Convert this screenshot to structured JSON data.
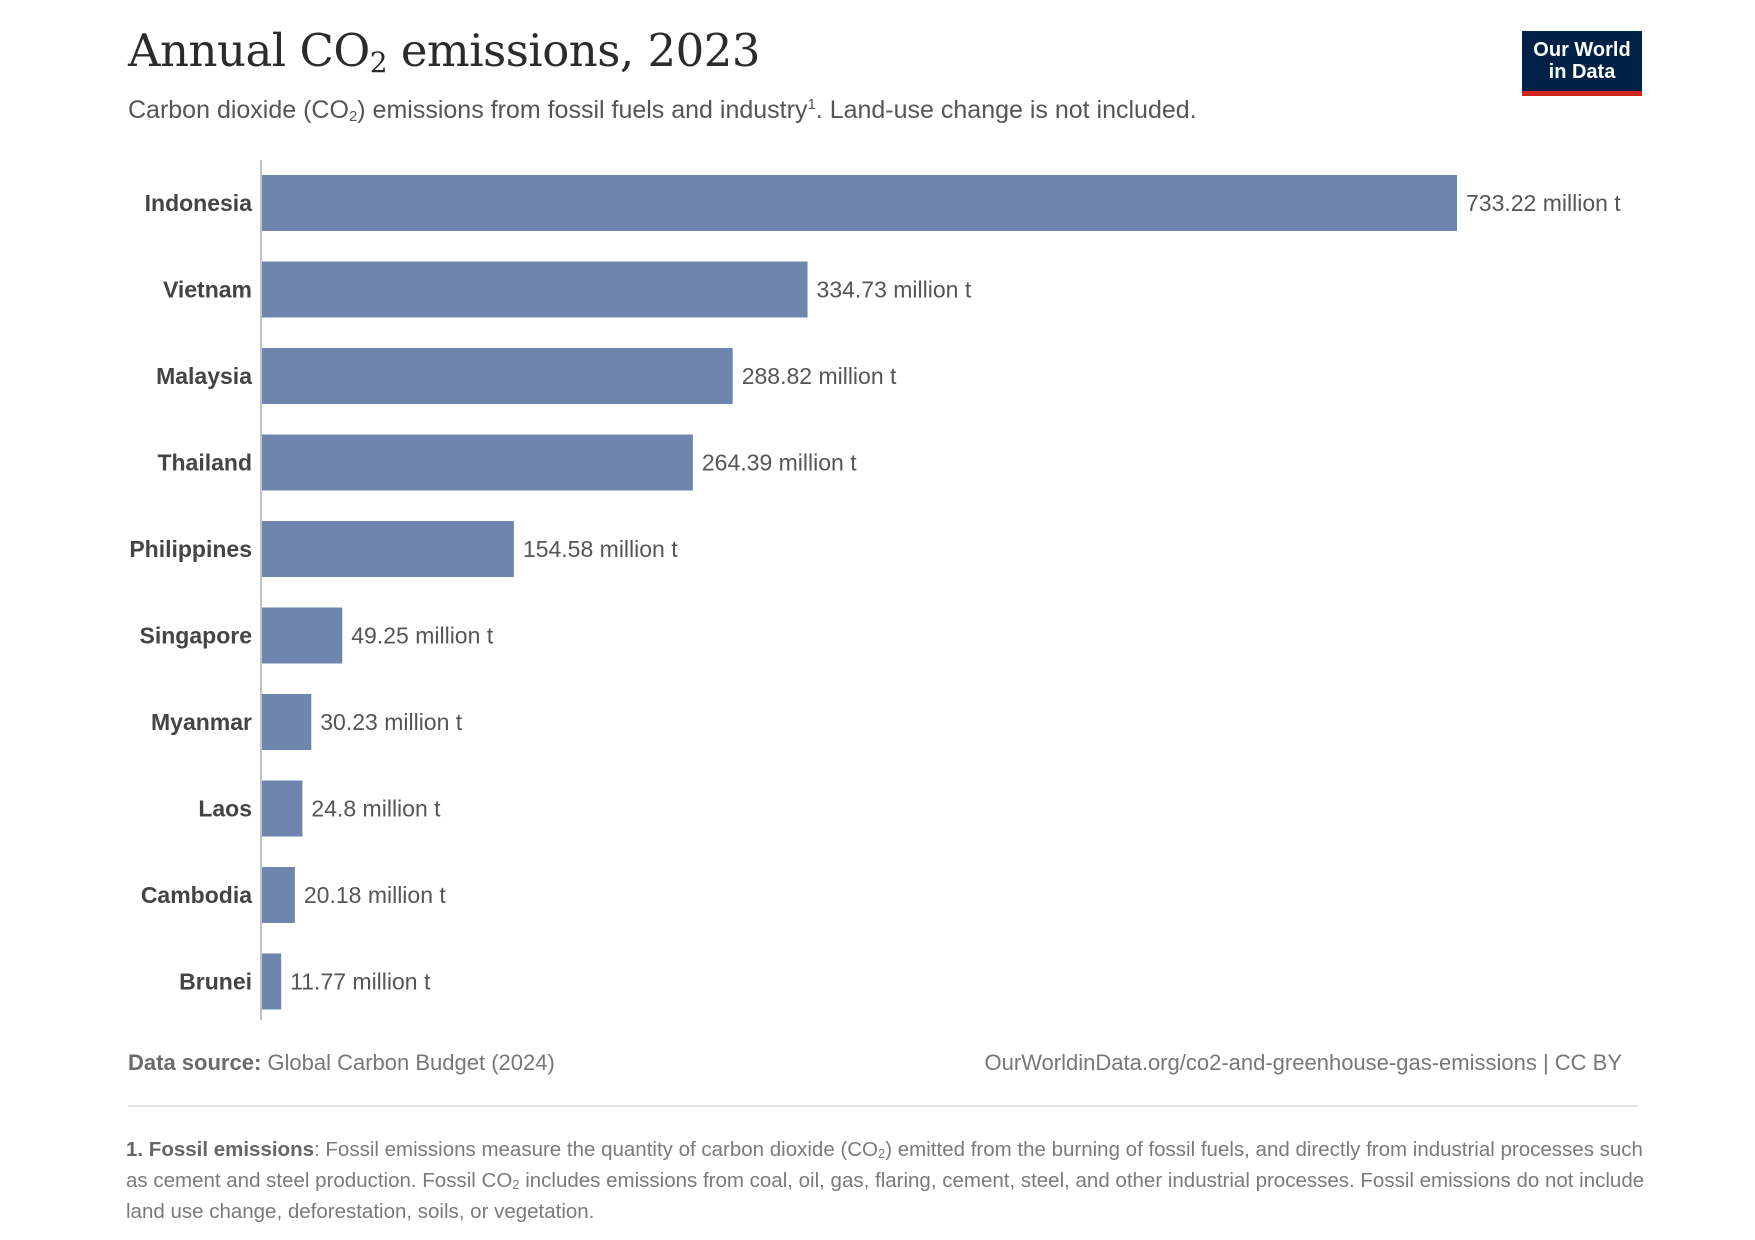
{
  "header": {
    "title_pre": "Annual CO",
    "title_sub": "2",
    "title_post": " emissions, 2023",
    "subtitle_pre": "Carbon dioxide (CO",
    "subtitle_sub": "2",
    "subtitle_mid": ") emissions from fossil fuels and industry",
    "subtitle_sup": "1",
    "subtitle_post": ". Land-use change is not included."
  },
  "logo": {
    "line1": "Our World",
    "line2": "in Data",
    "bg_color": "#002147",
    "accent_color": "#ce261e"
  },
  "chart_data": {
    "type": "bar",
    "orientation": "horizontal",
    "categories": [
      "Indonesia",
      "Vietnam",
      "Malaysia",
      "Thailand",
      "Philippines",
      "Singapore",
      "Myanmar",
      "Laos",
      "Cambodia",
      "Brunei"
    ],
    "values": [
      733.22,
      334.73,
      288.82,
      264.39,
      154.58,
      49.25,
      30.23,
      24.8,
      20.18,
      11.77
    ],
    "value_labels": [
      "733.22 million t",
      "334.73 million t",
      "288.82 million t",
      "264.39 million t",
      "154.58 million t",
      "49.25 million t",
      "30.23 million t",
      "24.8 million t",
      "20.18 million t",
      "11.77 million t"
    ],
    "unit": "million t",
    "xlim": [
      0,
      733.22
    ],
    "bar_color": "#6e86ae",
    "grid": false,
    "legend": "none"
  },
  "footer": {
    "source_label": "Data source:",
    "source_text": " Global Carbon Budget (2024)",
    "url_text": "OurWorldinData.org/co2-and-greenhouse-gas-emissions | CC BY",
    "note_label": "1. Fossil emissions",
    "note_p1": ": Fossil emissions measure the quantity of carbon dioxide (CO",
    "note_sub1": "2",
    "note_p2": ") emitted from the burning of fossil fuels, and directly from industrial processes such as cement and steel production. Fossil CO",
    "note_sub2": "2",
    "note_p3": " includes emissions from coal, oil, gas, flaring, cement, steel, and other industrial processes. Fossil emissions do not include land use change, deforestation, soils, or vegetation."
  }
}
